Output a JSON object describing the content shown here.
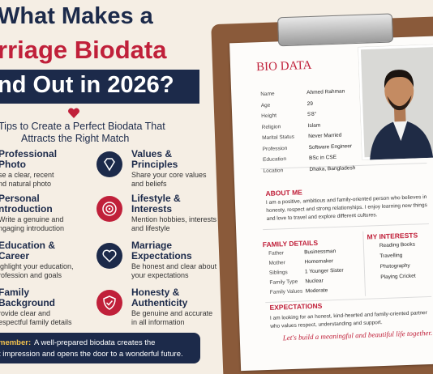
{
  "header": {
    "title_lines": [
      "What Makes a",
      "rriage Biodata",
      "nd Out in 2026?"
    ],
    "subtitle_lines": [
      "Tips to Create a Perfect Biodata That",
      "Attracts the Right Match"
    ]
  },
  "tips": [
    {
      "title_lines": [
        "Professional",
        "Photo"
      ],
      "desc_lines": [
        "se a clear, recent",
        "nd natural photo"
      ]
    },
    {
      "title_lines": [
        "Personal",
        "ntroduction"
      ],
      "desc_lines": [
        "Write a genuine and",
        "ngaging introduction"
      ]
    },
    {
      "title_lines": [
        "Education &",
        "Career"
      ],
      "desc_lines": [
        "ighlight your education,",
        "rofession and goals"
      ]
    },
    {
      "title_lines": [
        "Family",
        "Background"
      ],
      "desc_lines": [
        "rovide clear and",
        "espectful family details"
      ]
    },
    {
      "title_lines": [
        "Values &",
        "Principles"
      ],
      "desc_lines": [
        "Share your core values",
        "and beliefs"
      ]
    },
    {
      "title_lines": [
        "Lifestyle &",
        "Interests"
      ],
      "desc_lines": [
        "Mention hobbies, interests",
        "and lifestyle"
      ]
    },
    {
      "title_lines": [
        "Marriage",
        "Expectations"
      ],
      "desc_lines": [
        "Be honest and clear about",
        "your expectations"
      ]
    },
    {
      "title_lines": [
        "Honesty &",
        "Authenticity"
      ],
      "desc_lines": [
        "Be genuine and accurate",
        "in all information"
      ]
    }
  ],
  "reminder": {
    "label": "member:",
    "lines": [
      "A well-prepared biodata creates the",
      "t impression and opens the door to a wonderful future."
    ]
  },
  "biodata": {
    "title": "BIO DATA",
    "fields": [
      {
        "label": "Name",
        "value": "Ahmed Rahman"
      },
      {
        "label": "Age",
        "value": "29"
      },
      {
        "label": "Height",
        "value": "5'8\""
      },
      {
        "label": "Religion",
        "value": "Islam"
      },
      {
        "label": "Marital Status",
        "value": "Never Married"
      },
      {
        "label": "Profession",
        "value": "Software Engineer"
      },
      {
        "label": "Education",
        "value": "BSc in CSE"
      },
      {
        "label": "Location",
        "value": "Dhaka, Bangladesh"
      }
    ],
    "about": {
      "title": "ABOUT ME",
      "lines": [
        "I am a positive, ambitious and family-oriented person who believes in",
        "honesty, respect and strong relationships. I enjoy learning new things",
        "and love to travel and explore different cultures."
      ]
    },
    "family": {
      "title": "FAMILY DETAILS",
      "rows": [
        {
          "label": "Father",
          "value": "Businessman"
        },
        {
          "label": "Mother",
          "value": "Homemaker"
        },
        {
          "label": "Siblings",
          "value": "1 Younger Sister"
        },
        {
          "label": "Family Type",
          "value": "Nuclear"
        },
        {
          "label": "Family Values",
          "value": "Moderate"
        }
      ]
    },
    "interests": {
      "title": "MY INTERESTS",
      "items": [
        "Reading Books",
        "Travelling",
        "Photography",
        "Playing Cricket"
      ]
    },
    "expectations": {
      "title": "EXPECTATIONS",
      "lines": [
        "I am looking for an honest, kind-hearted and family-oriented partner",
        "who values respect, understanding and support."
      ]
    },
    "footer": "Let's build a meaningful and beautiful life together."
  }
}
